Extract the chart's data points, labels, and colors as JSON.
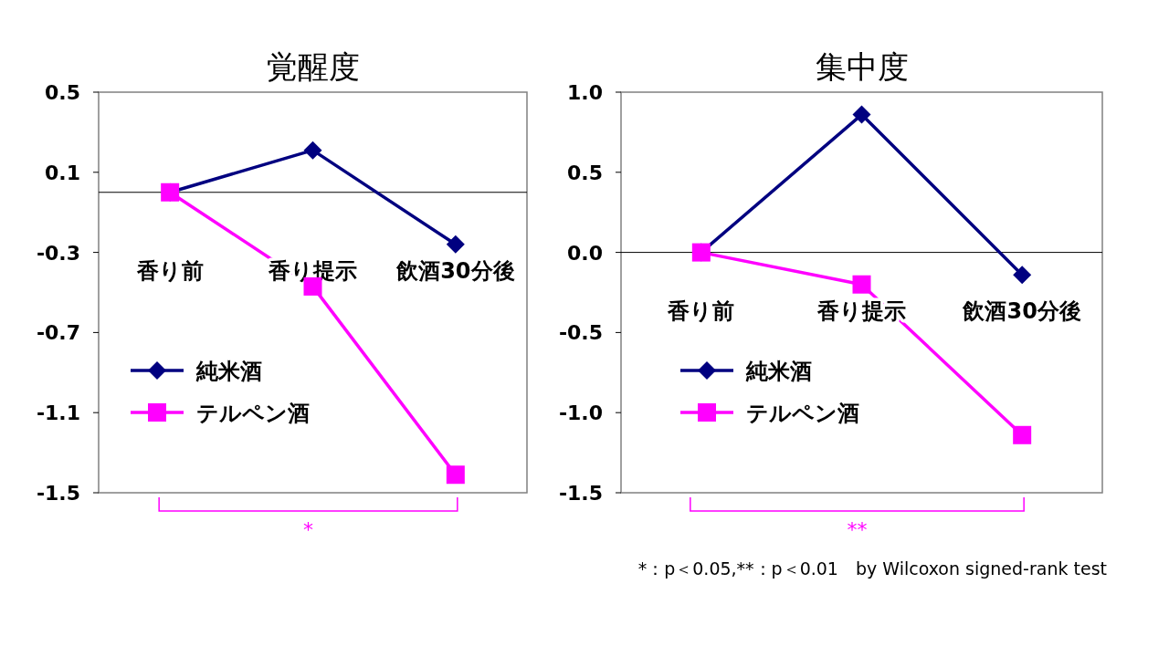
{
  "chart_data": [
    {
      "type": "line",
      "title": "覚醒度",
      "categories": [
        "香り前",
        "香り提示",
        "飲酒30分後"
      ],
      "series": [
        {
          "name": "純米酒",
          "color": "#000080",
          "marker": "diamond",
          "values": [
            0,
            0.21,
            -0.26
          ]
        },
        {
          "name": "テルペン酒",
          "color": "#ff00ff",
          "marker": "square",
          "values": [
            0,
            -0.47,
            -1.41
          ]
        }
      ],
      "ylim": [
        -1.5,
        0.5
      ],
      "yticks": [
        -1.5,
        -1.1,
        -0.7,
        -0.3,
        0.1,
        0.5
      ],
      "grid": false,
      "legend": "bottom left",
      "line_style": "solid",
      "annotations": [
        "*"
      ]
    },
    {
      "type": "line",
      "title": "集中度",
      "categories": [
        "香り前",
        "香り提示",
        "飲酒30分後"
      ],
      "series": [
        {
          "name": "純米酒",
          "color": "#000080",
          "marker": "diamond",
          "values": [
            0,
            0.86,
            -0.14
          ]
        },
        {
          "name": "テルペン酒",
          "color": "#ff00ff",
          "marker": "square",
          "values": [
            0,
            -0.2,
            -1.14
          ]
        }
      ],
      "ylim": [
        -1.5,
        1.0
      ],
      "yticks": [
        {
          "value": -1.5,
          "label": "-1.5"
        },
        {
          "value": -1,
          "label": "-1.0"
        },
        {
          "value": -0.5,
          "label": "-0.5"
        },
        {
          "value": 0,
          "label": "0.0"
        },
        {
          "value": 0.5,
          "label": "0.5"
        },
        {
          "value": 1,
          "label": "1.0"
        }
      ],
      "grid": false,
      "legend": "bottom left",
      "line_style": "solid",
      "annotations": [
        "**",
        "*：p＜0.05,**：p＜0.01　by Wilcoxon signed-rank test"
      ]
    }
  ]
}
